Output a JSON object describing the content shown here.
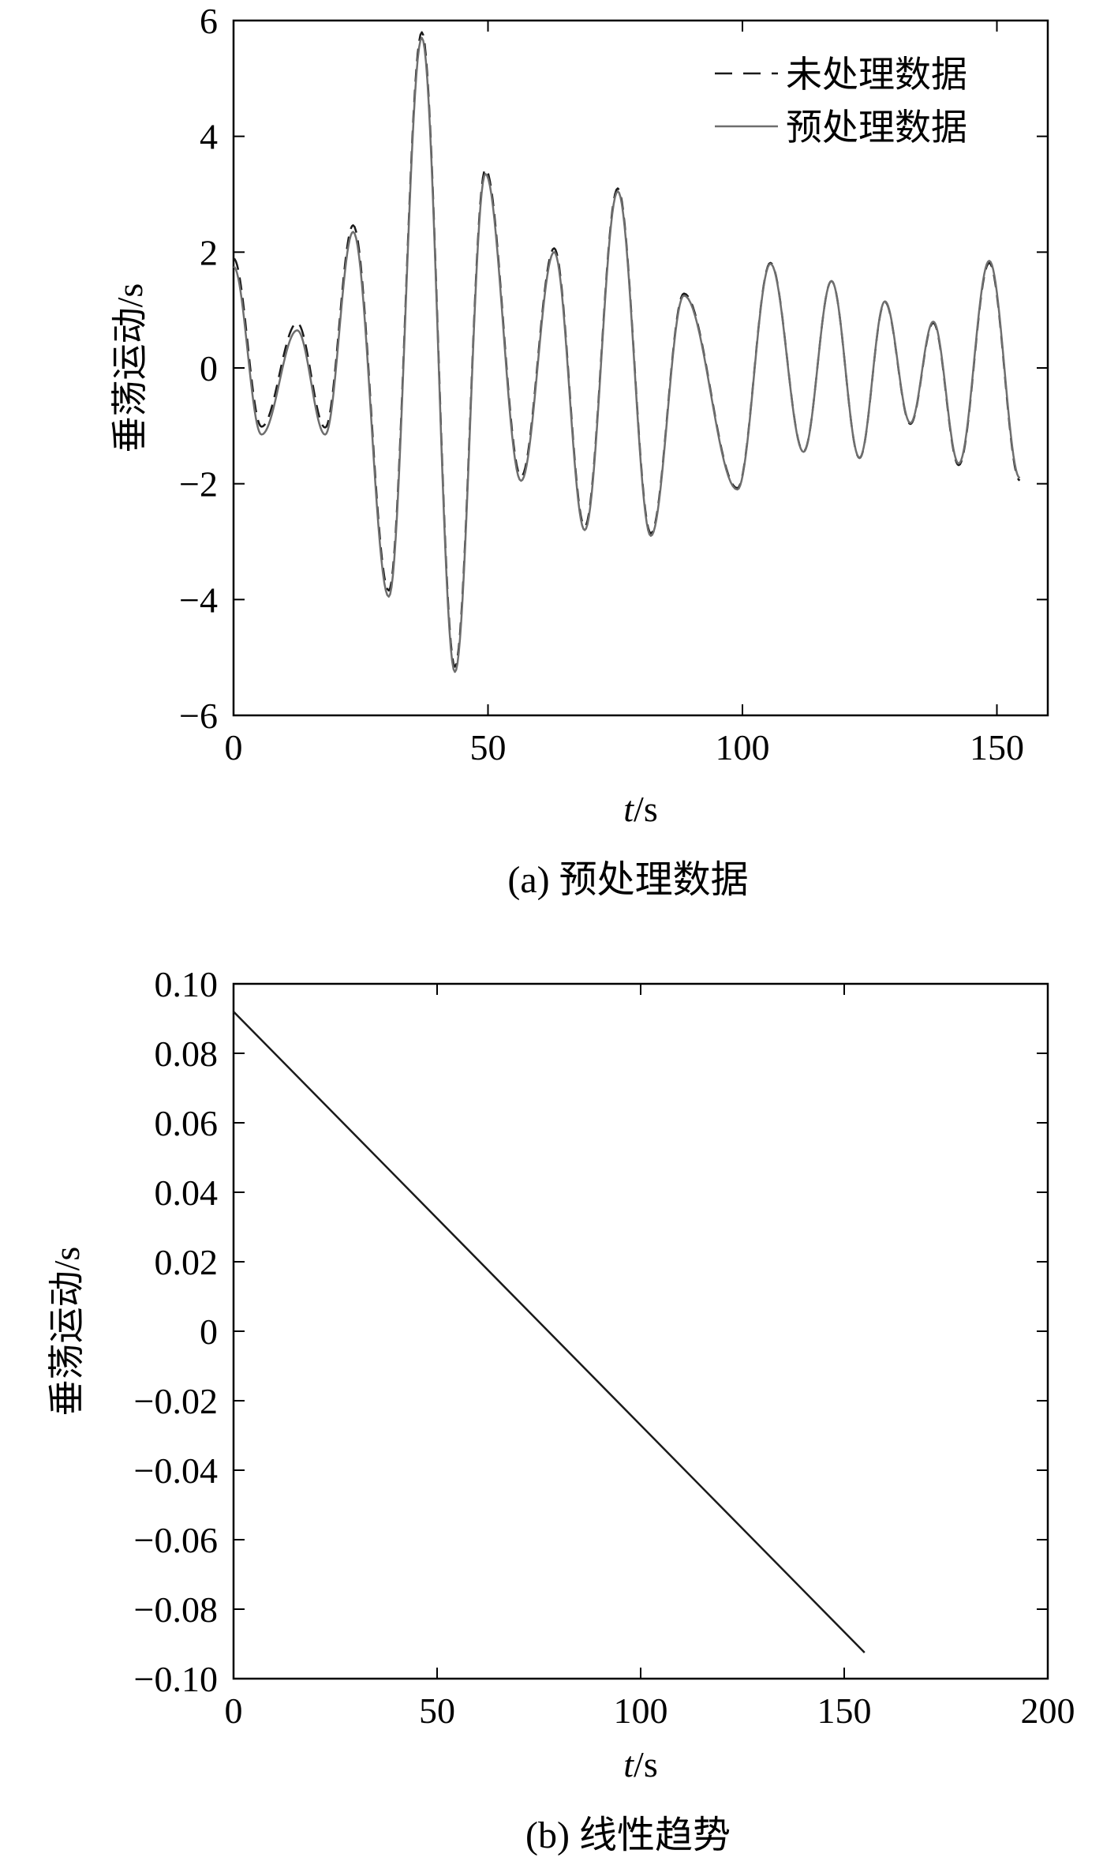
{
  "chart_data": [
    {
      "type": "line",
      "caption": "(a) 预处理数据",
      "xlabel_italic": "t",
      "xlabel_rest": "/s",
      "ylabel": "垂荡运动/s",
      "xlim": [
        0,
        160
      ],
      "ylim": [
        -6,
        6
      ],
      "xticks": [
        0,
        50,
        100,
        150
      ],
      "xtick_labels": [
        "0",
        "50",
        "100",
        "150"
      ],
      "yticks": [
        6,
        4,
        2,
        0,
        -2,
        -4,
        -6
      ],
      "ytick_labels": [
        "6",
        "4",
        "2",
        "0",
        "−2",
        "−4",
        "−6"
      ],
      "legend_position": "top-right",
      "grid": false,
      "series": [
        {
          "name": "未处理数据",
          "style": "dashed",
          "color": "#1a1a1a",
          "offset_trend": [
            0.092,
            -0.0012
          ],
          "x": [
            0,
            5.5,
            12.5,
            18,
            23.5,
            30.5,
            37,
            43.5,
            49.5,
            56.5,
            63,
            69,
            75.5,
            82,
            88.5,
            99,
            105.5,
            112,
            117.5,
            123,
            128,
            133,
            137.5,
            142.5,
            148.5,
            154.5
          ],
          "y": [
            1.8,
            -1.1,
            0.7,
            -1.1,
            2.4,
            -3.9,
            5.75,
            -5.2,
            3.4,
            -1.9,
            2.05,
            -2.75,
            3.1,
            -2.85,
            1.3,
            -2.05,
            1.85,
            -1.4,
            1.55,
            -1.5,
            1.2,
            -0.9,
            0.85,
            -1.6,
            1.9,
            -1.85
          ]
        },
        {
          "name": "预处理数据",
          "style": "solid",
          "color": "#6e6e6e",
          "x": [
            0,
            5.5,
            12.5,
            18,
            23.5,
            30.5,
            37,
            43.5,
            49.5,
            56.5,
            63,
            69,
            75.5,
            82,
            88.5,
            99,
            105.5,
            112,
            117.5,
            123,
            128,
            133,
            137.5,
            142.5,
            148.5,
            154.5
          ],
          "y": [
            1.75,
            -1.15,
            0.65,
            -1.15,
            2.35,
            -3.95,
            5.7,
            -5.25,
            3.35,
            -1.95,
            2.0,
            -2.8,
            3.05,
            -2.9,
            1.25,
            -2.1,
            1.8,
            -1.45,
            1.5,
            -1.55,
            1.15,
            -0.95,
            0.8,
            -1.65,
            1.85,
            -1.9
          ]
        }
      ]
    },
    {
      "type": "line",
      "caption": "(b) 线性趋势",
      "xlabel_italic": "t",
      "xlabel_rest": "/s",
      "ylabel": "垂荡运动/s",
      "xlim": [
        0,
        200
      ],
      "ylim": [
        -0.1,
        0.1
      ],
      "xticks": [
        0,
        50,
        100,
        150,
        200
      ],
      "xtick_labels": [
        "0",
        "50",
        "100",
        "150",
        "200"
      ],
      "yticks": [
        0.1,
        0.08,
        0.06,
        0.04,
        0.02,
        0,
        -0.02,
        -0.04,
        -0.06,
        -0.08,
        -0.1
      ],
      "ytick_labels": [
        "0.10",
        "0.08",
        "0.06",
        "0.04",
        "0.02",
        "0",
        "−0.02",
        "−0.04",
        "−0.06",
        "−0.08",
        "−0.10"
      ],
      "grid": false,
      "series": [
        {
          "style": "solid",
          "color": "#1a1a1a",
          "x": [
            0,
            155
          ],
          "y": [
            0.092,
            -0.0925
          ]
        }
      ]
    }
  ]
}
